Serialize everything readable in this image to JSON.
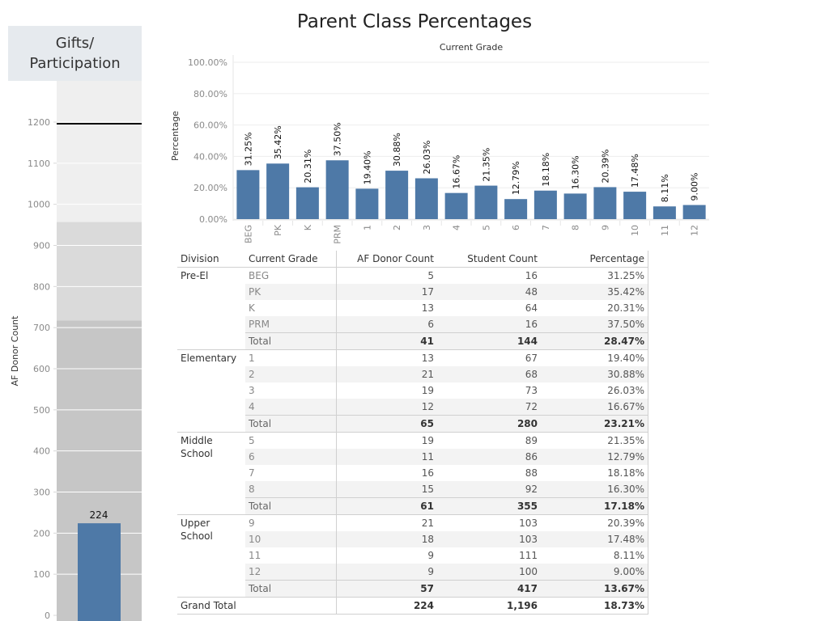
{
  "gauge": {
    "title_line1": "Gifts/",
    "title_line2": "Participation",
    "axis_label": "AF Donor Count",
    "value": 224,
    "value_label": "224",
    "target_line": 1196,
    "bands": [
      {
        "from": 0,
        "to": 717,
        "color": "#c6c6c6"
      },
      {
        "from": 717,
        "to": 957,
        "color": "#dadada"
      },
      {
        "from": 957,
        "to": 1270,
        "color": "#efefef"
      }
    ],
    "ticks": [
      0,
      100,
      200,
      300,
      400,
      500,
      600,
      700,
      800,
      900,
      1000,
      1100,
      1200
    ],
    "ymax": 1270,
    "bar_color": "#4e79a7"
  },
  "chart_data": {
    "type": "bar",
    "title": "Parent Class Percentages",
    "xlabel": "Current Grade",
    "ylabel": "Percentage",
    "categories": [
      "BEG",
      "PK",
      "K",
      "PRM",
      "1",
      "2",
      "3",
      "4",
      "5",
      "6",
      "7",
      "8",
      "9",
      "10",
      "11",
      "12"
    ],
    "values": [
      31.25,
      35.42,
      20.31,
      37.5,
      19.4,
      30.88,
      26.03,
      16.67,
      21.35,
      12.79,
      18.18,
      16.3,
      20.39,
      17.48,
      8.11,
      9.0
    ],
    "data_labels": [
      "31.25%",
      "35.42%",
      "20.31%",
      "37.50%",
      "19.40%",
      "30.88%",
      "26.03%",
      "16.67%",
      "21.35%",
      "12.79%",
      "18.18%",
      "16.30%",
      "20.39%",
      "17.48%",
      "8.11%",
      "9.00%"
    ],
    "yticks": [
      "0.00%",
      "20.00%",
      "40.00%",
      "60.00%",
      "80.00%",
      "100.00%"
    ],
    "ylim": [
      0,
      100
    ],
    "grid": true,
    "bar_color": "#4e79a7"
  },
  "table": {
    "headers": [
      "Division",
      "Current Grade",
      "AF Donor Count",
      "Student Count",
      "Percentage"
    ],
    "groups": [
      {
        "division": "Pre-El",
        "rows": [
          {
            "grade": "BEG",
            "donors": "5",
            "students": "16",
            "pct": "31.25%"
          },
          {
            "grade": "PK",
            "donors": "17",
            "students": "48",
            "pct": "35.42%"
          },
          {
            "grade": "K",
            "donors": "13",
            "students": "64",
            "pct": "20.31%"
          },
          {
            "grade": "PRM",
            "donors": "6",
            "students": "16",
            "pct": "37.50%"
          }
        ],
        "total": {
          "label": "Total",
          "donors": "41",
          "students": "144",
          "pct": "28.47%"
        }
      },
      {
        "division": "Elementary",
        "rows": [
          {
            "grade": "1",
            "donors": "13",
            "students": "67",
            "pct": "19.40%"
          },
          {
            "grade": "2",
            "donors": "21",
            "students": "68",
            "pct": "30.88%"
          },
          {
            "grade": "3",
            "donors": "19",
            "students": "73",
            "pct": "26.03%"
          },
          {
            "grade": "4",
            "donors": "12",
            "students": "72",
            "pct": "16.67%"
          }
        ],
        "total": {
          "label": "Total",
          "donors": "65",
          "students": "280",
          "pct": "23.21%"
        }
      },
      {
        "division": "Middle School",
        "rows": [
          {
            "grade": "5",
            "donors": "19",
            "students": "89",
            "pct": "21.35%"
          },
          {
            "grade": "6",
            "donors": "11",
            "students": "86",
            "pct": "12.79%"
          },
          {
            "grade": "7",
            "donors": "16",
            "students": "88",
            "pct": "18.18%"
          },
          {
            "grade": "8",
            "donors": "15",
            "students": "92",
            "pct": "16.30%"
          }
        ],
        "total": {
          "label": "Total",
          "donors": "61",
          "students": "355",
          "pct": "17.18%"
        }
      },
      {
        "division": "Upper School",
        "rows": [
          {
            "grade": "9",
            "donors": "21",
            "students": "103",
            "pct": "20.39%"
          },
          {
            "grade": "10",
            "donors": "18",
            "students": "103",
            "pct": "17.48%"
          },
          {
            "grade": "11",
            "donors": "9",
            "students": "111",
            "pct": "8.11%"
          },
          {
            "grade": "12",
            "donors": "9",
            "students": "100",
            "pct": "9.00%"
          }
        ],
        "total": {
          "label": "Total",
          "donors": "57",
          "students": "417",
          "pct": "13.67%"
        }
      }
    ],
    "grand_total": {
      "label": "Grand Total",
      "donors": "224",
      "students": "1,196",
      "pct": "18.73%"
    }
  }
}
